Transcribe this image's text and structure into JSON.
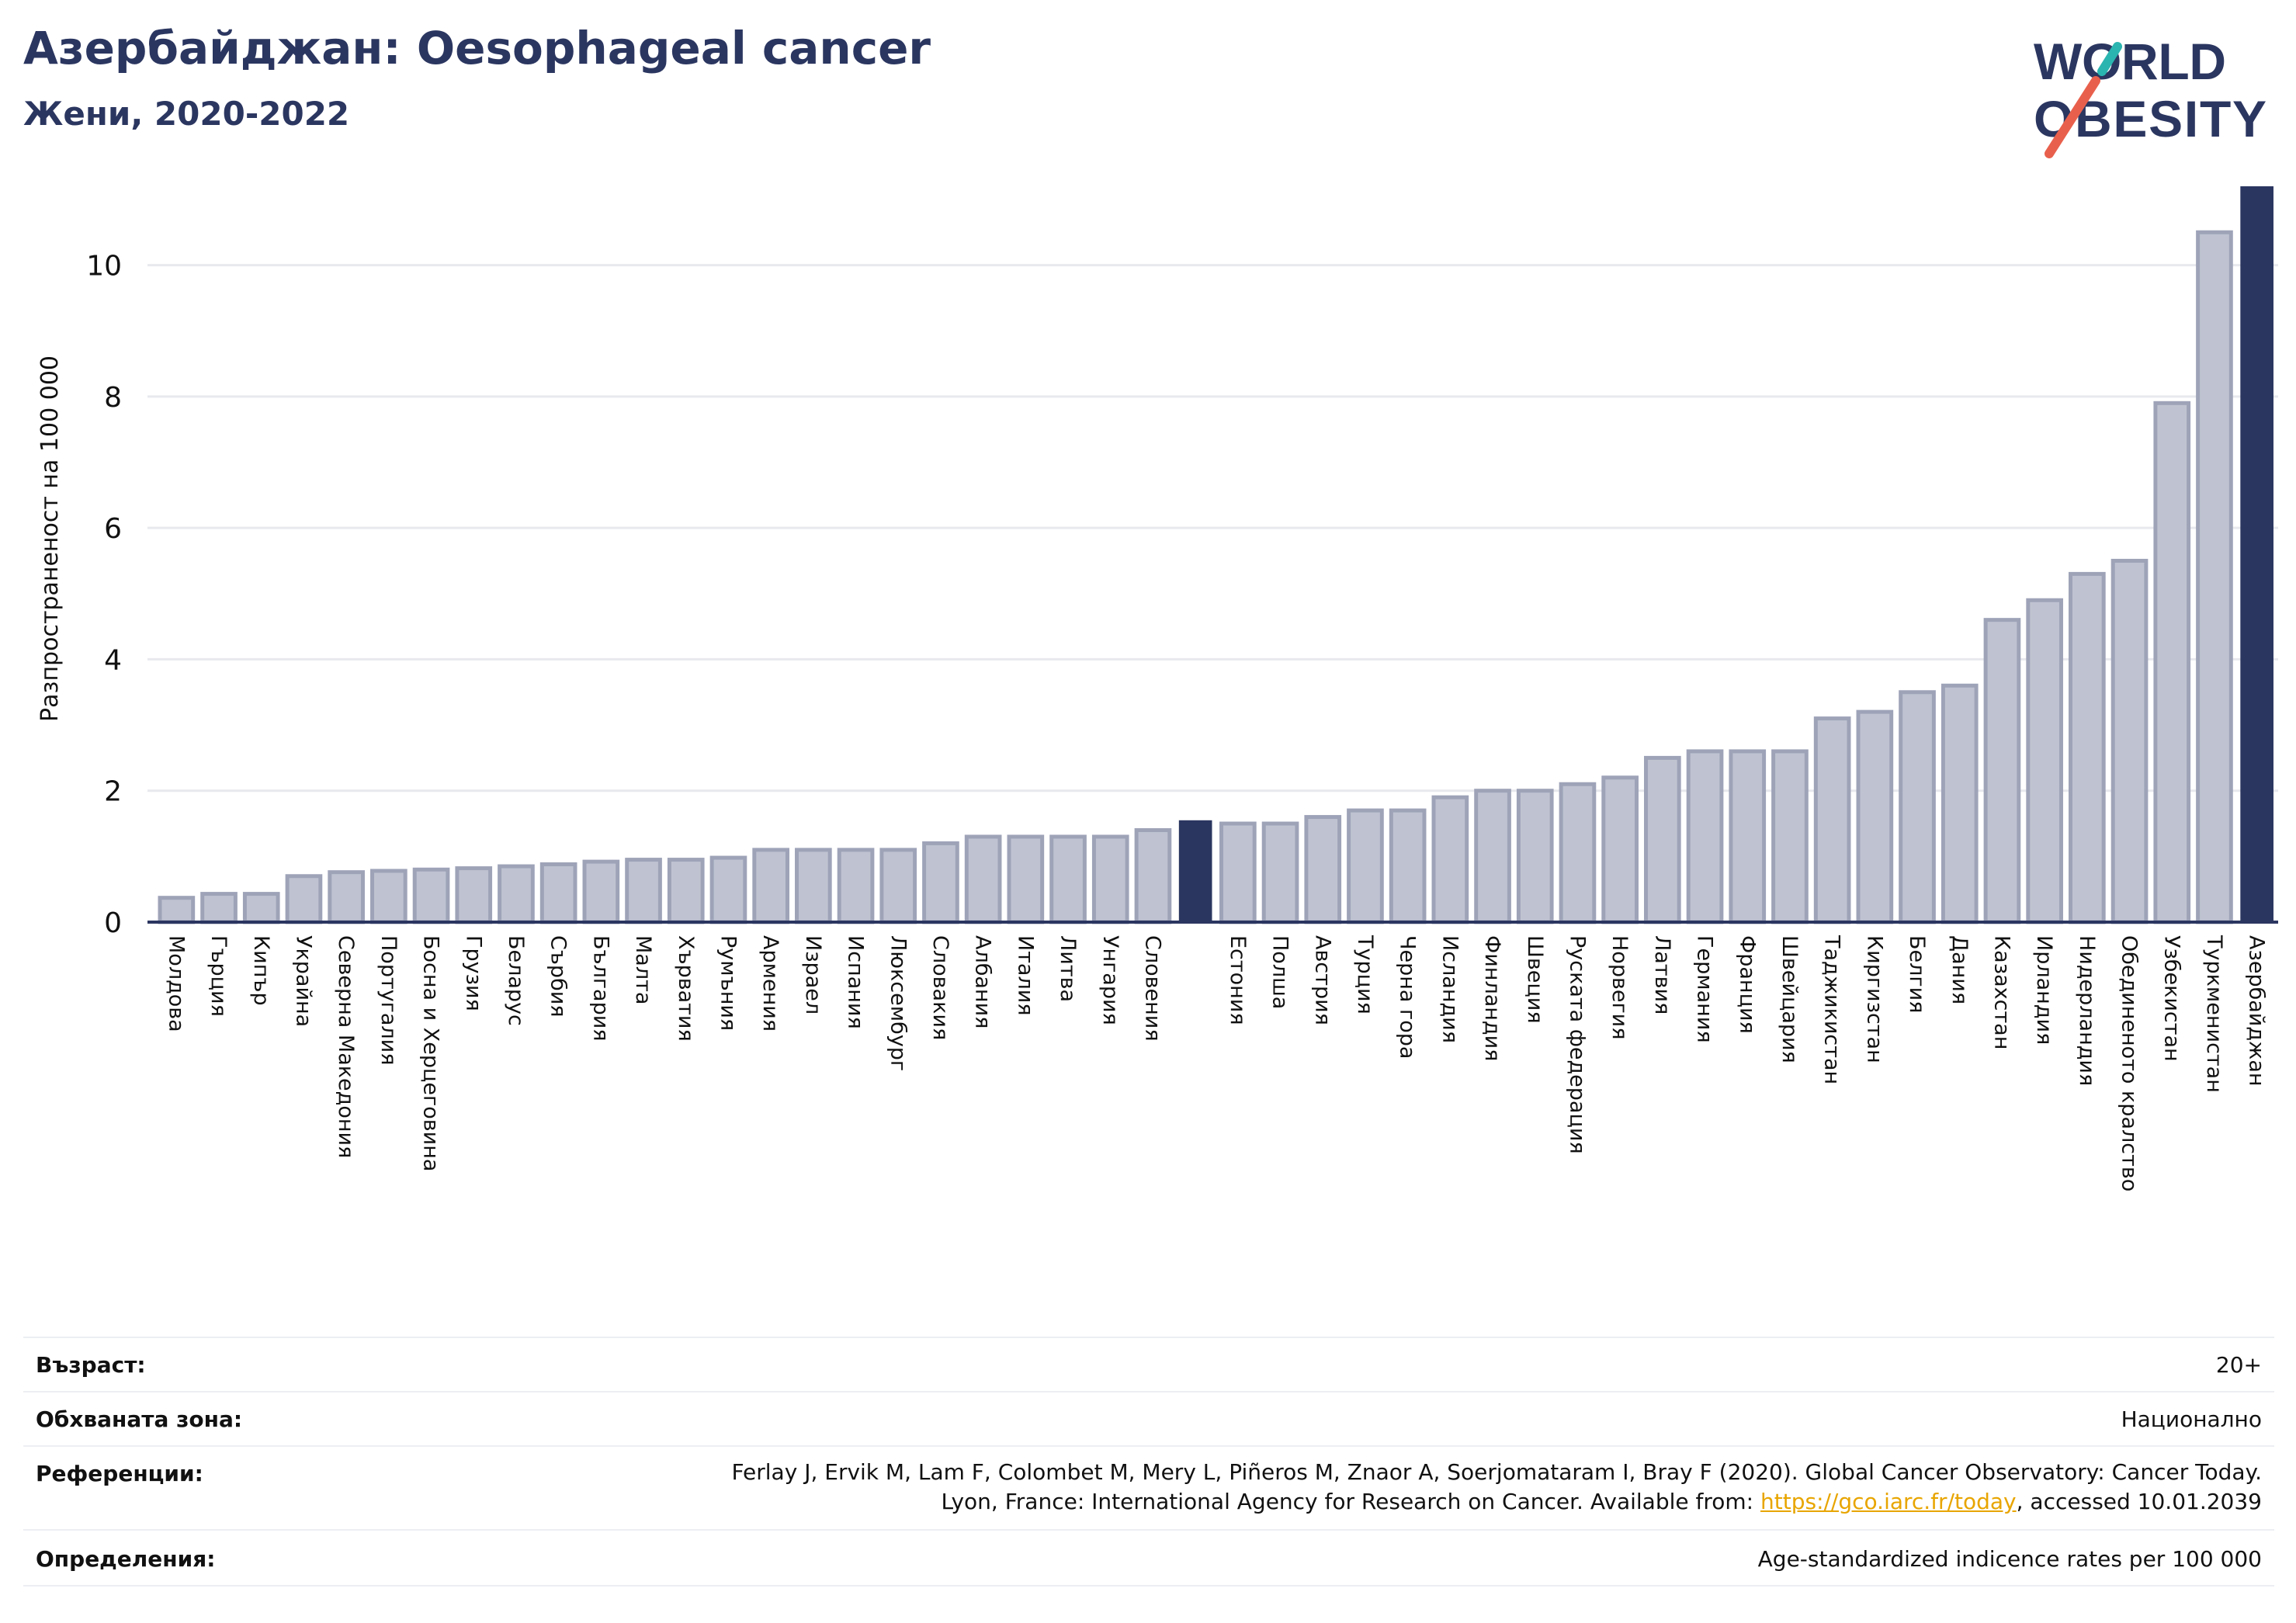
{
  "header": {
    "title": "Азербайджан: Oesophageal cancer",
    "subtitle": "Жени, 2020-2022"
  },
  "logo": {
    "line1": "WORLD",
    "line2": "OBESITY",
    "accent_colors": [
      "#e8604c",
      "#2bb5b0"
    ]
  },
  "colors": {
    "bar": "#bfc3d1",
    "bar_stroke": "#9ea3b8",
    "highlight": "#2b3660",
    "grid": "#e8e9ee",
    "axis": "#2b3660"
  },
  "chart_data": {
    "type": "bar",
    "ylabel": "Разпространеност  на 100 000",
    "ylim": [
      0,
      11.2
    ],
    "yticks": [
      0,
      2,
      4,
      6,
      8,
      10
    ],
    "grid": true,
    "categories": [
      "Молдова",
      "Гърция",
      "Кипър",
      "Украйна",
      "Северна Македония",
      "Португалия",
      "Босна и Херцеговина",
      "Грузия",
      "Беларус",
      "Сърбия",
      "България",
      "Малта",
      "Хърватия",
      "Румъния",
      "Армения",
      "Израел",
      "Испания",
      "Люксембург",
      "Словакия",
      "Албания",
      "Италия",
      "Литва",
      "Унгария",
      "Словения",
      "",
      "Естония",
      "Полша",
      "Австрия",
      "Турция",
      "Черна гора",
      "Исландия",
      "Финландия",
      "Швеция",
      "Руската федерация",
      "Норвегия",
      "Латвия",
      "Германия",
      "Франция",
      "Швейцария",
      "Таджикистан",
      "Киргизстан",
      "Белгия",
      "Дания",
      "Казахстан",
      "Ирландия",
      "Нидерландия",
      "Обединеното кралство",
      "Узбекистан",
      "Туркменистан",
      "Азербайджан"
    ],
    "values": [
      0.37,
      0.43,
      0.43,
      0.7,
      0.76,
      0.78,
      0.8,
      0.82,
      0.85,
      0.88,
      0.92,
      0.95,
      0.95,
      0.98,
      1.1,
      1.1,
      1.1,
      1.1,
      1.2,
      1.3,
      1.3,
      1.3,
      1.3,
      1.4,
      1.55,
      1.5,
      1.5,
      1.6,
      1.7,
      1.7,
      1.9,
      2.0,
      2.0,
      2.1,
      2.2,
      2.5,
      2.6,
      2.6,
      2.6,
      3.1,
      3.2,
      3.5,
      3.6,
      4.6,
      4.9,
      5.3,
      5.5,
      7.9,
      10.5,
      11.2
    ],
    "highlight_indices": [
      24,
      49
    ]
  },
  "info": {
    "rows": [
      {
        "label": "Възраст:",
        "value_lines": [
          "20+"
        ]
      },
      {
        "label": "Обхваната зона:",
        "value_lines": [
          "Национално"
        ]
      },
      {
        "label": "Референции:",
        "value_lines": [
          "Ferlay J, Ervik M, Lam F, Colombet M, Mery L, Piñeros M, Znaor A, Soerjomataram I, Bray F (2020). Global Cancer Observatory: Cancer Today.",
          "Lyon, France: International Agency for Research on Cancer. Available from: ",
          "https://gco.iarc.fr/today",
          ", accessed 10.01.2039"
        ]
      },
      {
        "label": "Определения:",
        "value_lines": [
          "Age-standardized indicence rates per 100 000"
        ]
      }
    ]
  }
}
